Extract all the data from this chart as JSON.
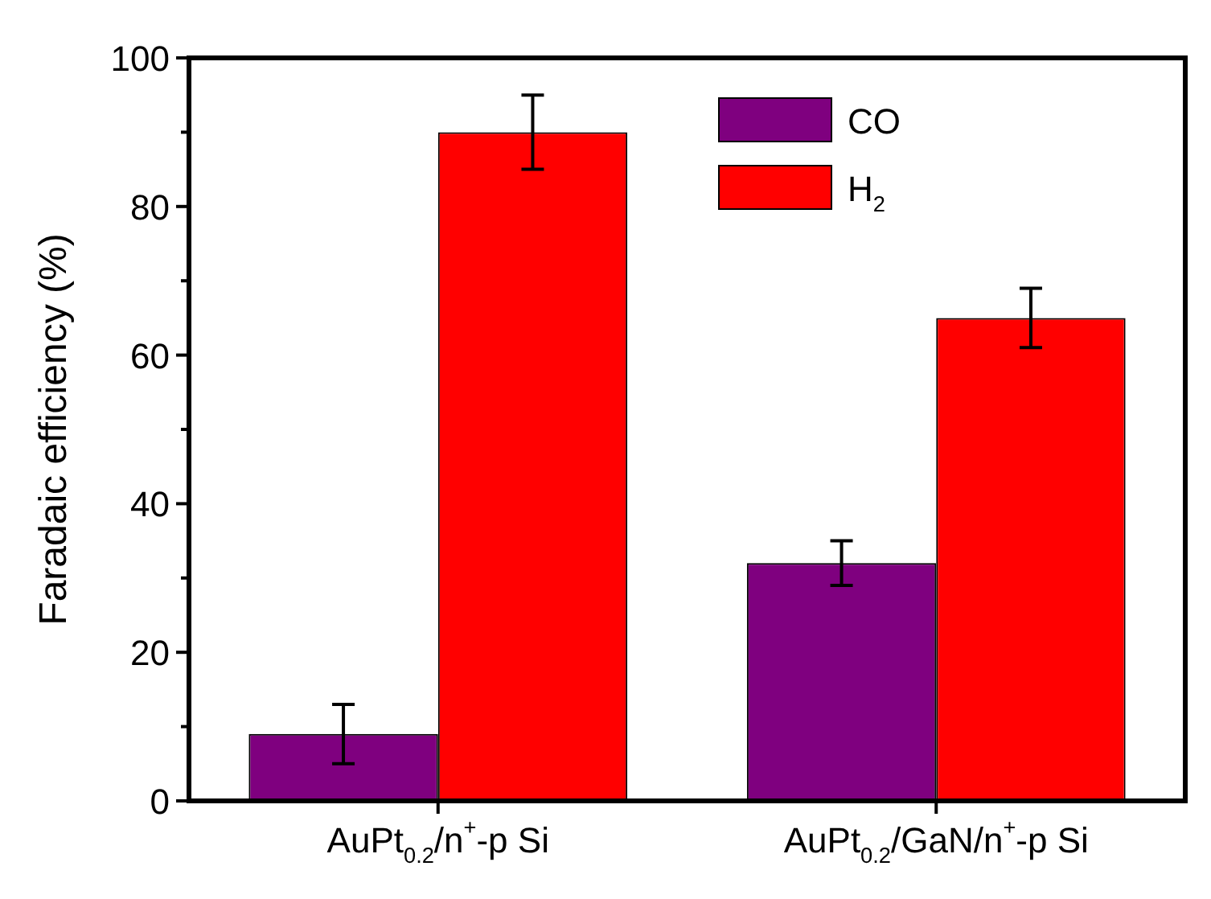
{
  "chart_data": {
    "type": "bar",
    "ylabel": "Faradaic efficiency (%)",
    "categories": [
      "AuPt$_{0.2}$/n$^{+}$-p Si",
      "AuPt$_{0.2}$/GaN/n$^{+}$-p Si"
    ],
    "series": [
      {
        "name": "CO",
        "color": "#7f007f",
        "values": [
          9,
          32
        ],
        "errors": [
          4,
          3
        ]
      },
      {
        "name": "H$_{2}$",
        "color": "#ff0000",
        "values": [
          90,
          65
        ],
        "errors": [
          5,
          4
        ]
      }
    ],
    "ylim": [
      0,
      100
    ],
    "yticks": [
      0,
      {
        "value": 10,
        "label": null
      },
      20,
      {
        "value": 30,
        "label": null
      },
      40,
      {
        "value": 50,
        "label": null
      },
      60,
      {
        "value": 70,
        "label": null
      },
      80,
      {
        "value": 90,
        "label": null
      },
      100
    ],
    "legend": "top right",
    "grid": false
  }
}
